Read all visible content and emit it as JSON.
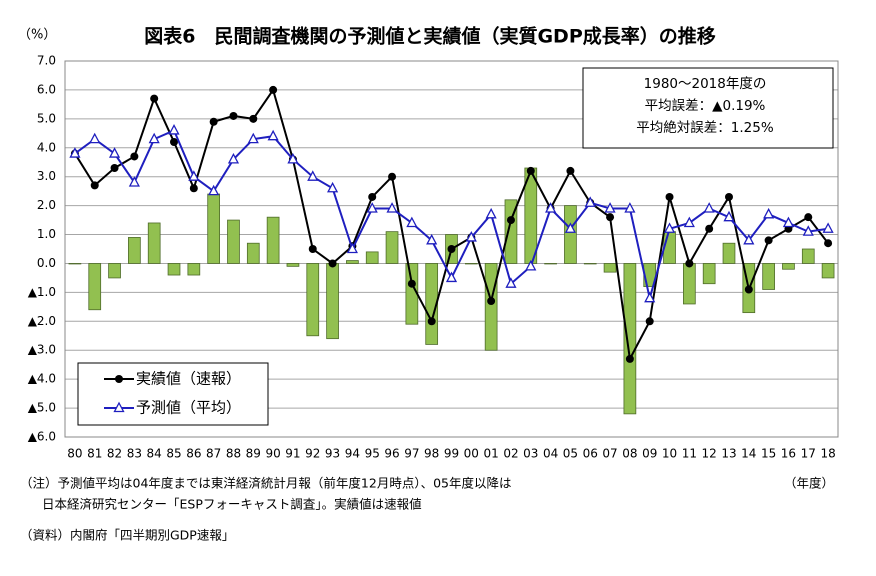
{
  "chart_data": {
    "type": "bar_line",
    "title": "図表6　民間調査機関の予測値と実績値（実質GDP成長率）の推移",
    "y_axis_label": "（%）",
    "x_axis_label": "（年度）",
    "annotation": [
      "1980～2018年度の",
      "平均誤差：▲0.19%",
      "平均絶対誤差：1.25%"
    ],
    "notes": [
      "（注）予測値平均は04年度までは東洋経済統計月報（前年度12月時点）、05年度以降は",
      "日本経済研究センター「ESPフォーキャスト調査」。実績値は速報値",
      "（資料）内閣府「四半期別GDP速報」"
    ],
    "categories": [
      "80",
      "81",
      "82",
      "83",
      "84",
      "85",
      "86",
      "87",
      "88",
      "89",
      "90",
      "91",
      "92",
      "93",
      "94",
      "95",
      "96",
      "97",
      "98",
      "99",
      "00",
      "01",
      "02",
      "03",
      "04",
      "05",
      "06",
      "07",
      "08",
      "09",
      "10",
      "11",
      "12",
      "13",
      "14",
      "15",
      "16",
      "17",
      "18"
    ],
    "series": [
      {
        "type": "bar",
        "color": "#92c050",
        "values": [
          0.0,
          -1.6,
          -0.5,
          0.9,
          1.4,
          -0.4,
          -0.4,
          2.4,
          1.5,
          0.7,
          1.6,
          -0.1,
          -2.5,
          -2.6,
          0.1,
          0.4,
          1.1,
          -2.1,
          -2.8,
          1.0,
          0.0,
          -3.0,
          2.2,
          3.3,
          0.0,
          2.0,
          0.0,
          -0.3,
          -5.2,
          -0.8,
          1.1,
          -1.4,
          -0.7,
          0.7,
          -1.7,
          -0.9,
          -0.2,
          0.5,
          -0.5
        ]
      },
      {
        "type": "line",
        "name": "実績値（速報）",
        "color": "#000000",
        "marker": "circle",
        "values": [
          3.8,
          2.7,
          3.3,
          3.7,
          5.7,
          4.2,
          2.6,
          4.9,
          5.1,
          5.0,
          6.0,
          3.6,
          0.5,
          0.0,
          0.6,
          2.3,
          3.0,
          -0.7,
          -2.0,
          0.5,
          0.9,
          -1.3,
          1.5,
          3.2,
          1.9,
          3.2,
          2.1,
          1.6,
          -3.3,
          -2.0,
          2.3,
          0.0,
          1.2,
          2.3,
          -0.9,
          0.8,
          1.2,
          1.6,
          0.7
        ]
      },
      {
        "type": "line",
        "name": "予測値（平均）",
        "color": "#1f1fbf",
        "marker": "triangle",
        "values": [
          3.8,
          4.3,
          3.8,
          2.8,
          4.3,
          4.6,
          3.0,
          2.5,
          3.6,
          4.3,
          4.4,
          3.6,
          3.0,
          2.6,
          0.5,
          1.9,
          1.9,
          1.4,
          0.8,
          -0.5,
          0.9,
          1.7,
          -0.7,
          -0.1,
          1.9,
          1.2,
          2.1,
          1.9,
          1.9,
          -1.2,
          1.2,
          1.4,
          1.9,
          1.6,
          0.8,
          1.7,
          1.4,
          1.1,
          1.2
        ]
      }
    ],
    "ylim": [
      -6,
      7
    ],
    "yticks": [
      {
        "value": -6,
        "label": "▲6.0"
      },
      {
        "value": -5,
        "label": "▲5.0"
      },
      {
        "value": -4,
        "label": "▲4.0"
      },
      {
        "value": -3,
        "label": "▲3.0"
      },
      {
        "value": -2,
        "label": "▲2.0"
      },
      {
        "value": -1,
        "label": "▲1.0"
      },
      {
        "value": 0,
        "label": "0.0"
      },
      {
        "value": 1,
        "label": "1.0"
      },
      {
        "value": 2,
        "label": "2.0"
      },
      {
        "value": 3,
        "label": "3.0"
      },
      {
        "value": 4,
        "label": "4.0"
      },
      {
        "value": 5,
        "label": "5.0"
      },
      {
        "value": 6,
        "label": "6.0"
      },
      {
        "value": 7,
        "label": "7.0"
      }
    ],
    "grid": true,
    "legend": "lower left"
  }
}
